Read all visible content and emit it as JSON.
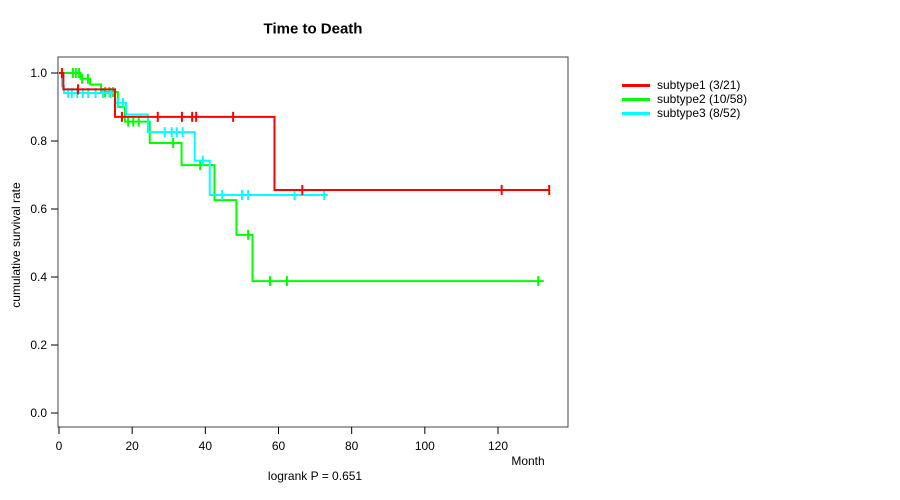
{
  "chart_data": {
    "type": "line",
    "subtype": "kaplan-meier-step",
    "title": "Time to Death",
    "xlabel": "Month",
    "ylabel": "cumulative survival rate",
    "annotation": "logrank P = 0.651",
    "xlim": [
      0,
      139
    ],
    "ylim": [
      0.0,
      1.0
    ],
    "x_ticks": [
      0,
      20,
      40,
      60,
      80,
      100,
      120
    ],
    "y_tick_labels": [
      "0.0",
      "0.2",
      "0.4",
      "0.6",
      "0.8",
      "1.0"
    ],
    "grid": false,
    "legend_position": "right-outside",
    "series": [
      {
        "name": "subtype1",
        "label": "subtype1 (3/21)",
        "events_over_n": "3/21",
        "color": "#ff0000",
        "end_month": 134,
        "steps": [
          [
            0,
            1.0
          ],
          [
            1.2,
            0.952
          ],
          [
            15.3,
            0.871
          ],
          [
            58.9,
            0.656
          ]
        ],
        "censors": [
          [
            0.8,
            1.0
          ],
          [
            5.2,
            0.952
          ],
          [
            17.2,
            0.871
          ],
          [
            27.0,
            0.871
          ],
          [
            33.6,
            0.871
          ],
          [
            36.4,
            0.871
          ],
          [
            37.5,
            0.871
          ],
          [
            47.6,
            0.871
          ],
          [
            66.5,
            0.656
          ],
          [
            121.0,
            0.656
          ],
          [
            134.0,
            0.656
          ]
        ]
      },
      {
        "name": "subtype2",
        "label": "subtype2 (10/58)",
        "events_over_n": "10/58",
        "color": "#00ff00",
        "end_month": 132.5,
        "steps": [
          [
            0,
            1.0
          ],
          [
            5.9,
            0.983
          ],
          [
            8.5,
            0.966
          ],
          [
            11.5,
            0.944
          ],
          [
            16.1,
            0.9
          ],
          [
            18.0,
            0.857
          ],
          [
            24.8,
            0.794
          ],
          [
            33.5,
            0.729
          ],
          [
            42.5,
            0.626
          ],
          [
            48.5,
            0.524
          ],
          [
            52.9,
            0.388
          ]
        ],
        "censors": [
          [
            3.8,
            1.0
          ],
          [
            4.6,
            1.0
          ],
          [
            5.5,
            1.0
          ],
          [
            6.3,
            0.983
          ],
          [
            7.9,
            0.983
          ],
          [
            12.6,
            0.944
          ],
          [
            13.8,
            0.944
          ],
          [
            14.8,
            0.944
          ],
          [
            18.9,
            0.857
          ],
          [
            20.3,
            0.857
          ],
          [
            21.8,
            0.857
          ],
          [
            31.2,
            0.794
          ],
          [
            38.6,
            0.729
          ],
          [
            51.7,
            0.524
          ],
          [
            57.7,
            0.388
          ],
          [
            62.3,
            0.388
          ],
          [
            131.0,
            0.388
          ]
        ]
      },
      {
        "name": "subtype3",
        "label": "subtype3 (8/52)",
        "events_over_n": "8/52",
        "color": "#00ffff",
        "end_month": 73.5,
        "steps": [
          [
            0,
            1.0
          ],
          [
            0.8,
            0.961
          ],
          [
            1.4,
            0.941
          ],
          [
            15.3,
            0.912
          ],
          [
            18.3,
            0.878
          ],
          [
            24.3,
            0.826
          ],
          [
            37.1,
            0.742
          ],
          [
            41.2,
            0.641
          ]
        ],
        "censors": [
          [
            2.5,
            0.941
          ],
          [
            3.5,
            0.941
          ],
          [
            5.0,
            0.941
          ],
          [
            6.5,
            0.941
          ],
          [
            8.0,
            0.941
          ],
          [
            10.0,
            0.941
          ],
          [
            12.0,
            0.941
          ],
          [
            14.0,
            0.941
          ],
          [
            16.0,
            0.912
          ],
          [
            17.5,
            0.912
          ],
          [
            28.9,
            0.826
          ],
          [
            30.8,
            0.826
          ],
          [
            32.2,
            0.826
          ],
          [
            33.8,
            0.826
          ],
          [
            39.3,
            0.742
          ],
          [
            44.6,
            0.641
          ],
          [
            50.0,
            0.641
          ],
          [
            51.7,
            0.641
          ],
          [
            64.4,
            0.641
          ],
          [
            72.5,
            0.641
          ]
        ]
      }
    ]
  }
}
